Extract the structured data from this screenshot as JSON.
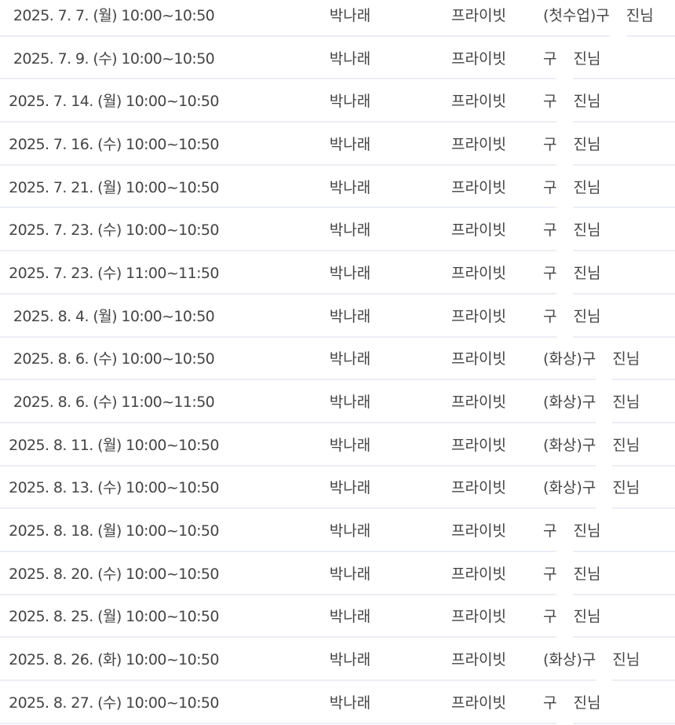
{
  "rows": [
    {
      "date": "2025. 7. 7. (월) 10:00~10:50",
      "student": "박나래",
      "type": "프라이빗",
      "teacher_prefix": "(첫수업)구",
      "teacher_suffix": "진님"
    },
    {
      "date": "2025. 7. 9. (수) 10:00~10:50",
      "student": "박나래",
      "type": "프라이빗",
      "teacher_prefix": "구",
      "teacher_suffix": "진님"
    },
    {
      "date": "2025. 7. 14. (월) 10:00~10:50",
      "student": "박나래",
      "type": "프라이빗",
      "teacher_prefix": "구",
      "teacher_suffix": "진님"
    },
    {
      "date": "2025. 7. 16. (수) 10:00~10:50",
      "student": "박나래",
      "type": "프라이빗",
      "teacher_prefix": "구",
      "teacher_suffix": "진님"
    },
    {
      "date": "2025. 7. 21. (월) 10:00~10:50",
      "student": "박나래",
      "type": "프라이빗",
      "teacher_prefix": "구",
      "teacher_suffix": "진님"
    },
    {
      "date": "2025. 7. 23. (수) 10:00~10:50",
      "student": "박나래",
      "type": "프라이빗",
      "teacher_prefix": "구",
      "teacher_suffix": "진님"
    },
    {
      "date": "2025. 7. 23. (수) 11:00~11:50",
      "student": "박나래",
      "type": "프라이빗",
      "teacher_prefix": "구",
      "teacher_suffix": "진님"
    },
    {
      "date": "2025. 8. 4. (월) 10:00~10:50",
      "student": "박나래",
      "type": "프라이빗",
      "teacher_prefix": "구",
      "teacher_suffix": "진님"
    },
    {
      "date": "2025. 8. 6. (수) 10:00~10:50",
      "student": "박나래",
      "type": "프라이빗",
      "teacher_prefix": "(화상)구",
      "teacher_suffix": "진님"
    },
    {
      "date": "2025. 8. 6. (수) 11:00~11:50",
      "student": "박나래",
      "type": "프라이빗",
      "teacher_prefix": "(화상)구",
      "teacher_suffix": "진님"
    },
    {
      "date": "2025. 8. 11. (월) 10:00~10:50",
      "student": "박나래",
      "type": "프라이빗",
      "teacher_prefix": "(화상)구",
      "teacher_suffix": "진님"
    },
    {
      "date": "2025. 8. 13. (수) 10:00~10:50",
      "student": "박나래",
      "type": "프라이빗",
      "teacher_prefix": "(화상)구",
      "teacher_suffix": "진님"
    },
    {
      "date": "2025. 8. 18. (월) 10:00~10:50",
      "student": "박나래",
      "type": "프라이빗",
      "teacher_prefix": "구",
      "teacher_suffix": "진님"
    },
    {
      "date": "2025. 8. 20. (수) 10:00~10:50",
      "student": "박나래",
      "type": "프라이빗",
      "teacher_prefix": "구",
      "teacher_suffix": "진님"
    },
    {
      "date": "2025. 8. 25. (월) 10:00~10:50",
      "student": "박나래",
      "type": "프라이빗",
      "teacher_prefix": "구",
      "teacher_suffix": "진님"
    },
    {
      "date": "2025. 8. 26. (화) 10:00~10:50",
      "student": "박나래",
      "type": "프라이빗",
      "teacher_prefix": "(화상)구",
      "teacher_suffix": "진님"
    },
    {
      "date": "2025. 8. 27. (수) 10:00~10:50",
      "student": "박나래",
      "type": "프라이빗",
      "teacher_prefix": "구",
      "teacher_suffix": "진님"
    }
  ]
}
